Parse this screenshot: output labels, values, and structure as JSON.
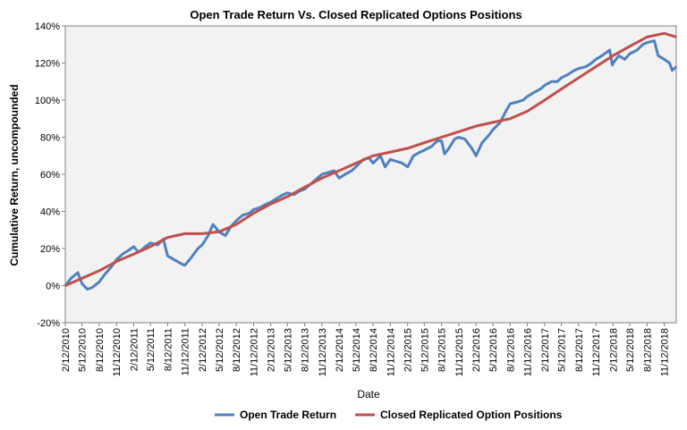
{
  "chart_data": {
    "type": "line",
    "title": "Open Trade Return Vs. Closed Replicated Options  Positions",
    "xlabel": "Date",
    "ylabel": "Cumulative Return, uncompounded",
    "x_tick_labels": [
      "2/12/2010",
      "5/12/2010",
      "8/12/2010",
      "11/12/2010",
      "2/12/2011",
      "5/12/2011",
      "8/12/2011",
      "11/12/2011",
      "2/12/2012",
      "5/12/2012",
      "8/12/2012",
      "11/12/2012",
      "2/12/2013",
      "5/12/2013",
      "8/12/2013",
      "11/12/2013",
      "2/12/2014",
      "5/12/2014",
      "8/12/2014",
      "11/12/2014",
      "2/12/2015",
      "5/12/2015",
      "8/12/2015",
      "11/12/2015",
      "2/12/2016",
      "5/12/2016",
      "8/12/2016",
      "11/12/2016",
      "2/12/2017",
      "5/12/2017",
      "8/12/2017",
      "11/12/2017",
      "2/12/2018",
      "5/12/2018",
      "8/12/2018",
      "11/12/2018"
    ],
    "y_tick_labels": [
      "-20%",
      "0%",
      "20%",
      "40%",
      "60%",
      "80%",
      "100%",
      "120%",
      "140%"
    ],
    "ylim": [
      -20,
      140
    ],
    "grid": false,
    "legend_position": "bottom",
    "series": [
      {
        "name": "Open Trade Return",
        "color": "#4f81bd",
        "points": [
          [
            "2010-02-12",
            0
          ],
          [
            "2010-03-15",
            4
          ],
          [
            "2010-04-20",
            7
          ],
          [
            "2010-05-12",
            1
          ],
          [
            "2010-06-10",
            -2
          ],
          [
            "2010-07-05",
            -1
          ],
          [
            "2010-08-12",
            2
          ],
          [
            "2010-09-10",
            6
          ],
          [
            "2010-10-15",
            10
          ],
          [
            "2010-11-12",
            14
          ],
          [
            "2010-12-15",
            17
          ],
          [
            "2011-01-15",
            19
          ],
          [
            "2011-02-12",
            21
          ],
          [
            "2011-03-10",
            18
          ],
          [
            "2011-04-15",
            21
          ],
          [
            "2011-05-12",
            23
          ],
          [
            "2011-06-20",
            22
          ],
          [
            "2011-07-20",
            25
          ],
          [
            "2011-08-12",
            16
          ],
          [
            "2011-09-15",
            14
          ],
          [
            "2011-10-20",
            12
          ],
          [
            "2011-11-12",
            11
          ],
          [
            "2011-12-15",
            15
          ],
          [
            "2012-01-20",
            20
          ],
          [
            "2012-02-12",
            22
          ],
          [
            "2012-03-15",
            27
          ],
          [
            "2012-04-10",
            33
          ],
          [
            "2012-05-12",
            29
          ],
          [
            "2012-06-15",
            27
          ],
          [
            "2012-07-15",
            32
          ],
          [
            "2012-08-12",
            35
          ],
          [
            "2012-09-15",
            38
          ],
          [
            "2012-10-20",
            39
          ],
          [
            "2012-11-12",
            41
          ],
          [
            "2012-12-15",
            42
          ],
          [
            "2013-01-20",
            44
          ],
          [
            "2013-02-12",
            45
          ],
          [
            "2013-03-15",
            47
          ],
          [
            "2013-04-20",
            49
          ],
          [
            "2013-05-12",
            50
          ],
          [
            "2013-06-15",
            49
          ],
          [
            "2013-07-15",
            51
          ],
          [
            "2013-08-12",
            52
          ],
          [
            "2013-09-15",
            55
          ],
          [
            "2013-10-20",
            58
          ],
          [
            "2013-11-12",
            60
          ],
          [
            "2013-12-15",
            61
          ],
          [
            "2014-01-15",
            62
          ],
          [
            "2014-02-12",
            58
          ],
          [
            "2014-03-15",
            60
          ],
          [
            "2014-04-20",
            62
          ],
          [
            "2014-05-12",
            64
          ],
          [
            "2014-06-20",
            68
          ],
          [
            "2014-07-20",
            69
          ],
          [
            "2014-08-12",
            66
          ],
          [
            "2014-09-20",
            70
          ],
          [
            "2014-10-15",
            64
          ],
          [
            "2014-11-12",
            68
          ],
          [
            "2014-12-15",
            67
          ],
          [
            "2015-01-15",
            66
          ],
          [
            "2015-02-12",
            64
          ],
          [
            "2015-03-15",
            70
          ],
          [
            "2015-04-20",
            72
          ],
          [
            "2015-05-12",
            73
          ],
          [
            "2015-06-20",
            75
          ],
          [
            "2015-07-20",
            78
          ],
          [
            "2015-08-12",
            78
          ],
          [
            "2015-08-28",
            71
          ],
          [
            "2015-09-20",
            74
          ],
          [
            "2015-10-20",
            79
          ],
          [
            "2015-11-12",
            80
          ],
          [
            "2015-12-15",
            79
          ],
          [
            "2016-01-20",
            74
          ],
          [
            "2016-02-12",
            70
          ],
          [
            "2016-03-15",
            77
          ],
          [
            "2016-04-20",
            81
          ],
          [
            "2016-05-12",
            84
          ],
          [
            "2016-06-20",
            88
          ],
          [
            "2016-07-20",
            94
          ],
          [
            "2016-08-12",
            98
          ],
          [
            "2016-09-20",
            99
          ],
          [
            "2016-10-20",
            100
          ],
          [
            "2016-11-12",
            102
          ],
          [
            "2016-12-15",
            104
          ],
          [
            "2017-01-20",
            106
          ],
          [
            "2017-02-12",
            108
          ],
          [
            "2017-03-20",
            110
          ],
          [
            "2017-04-20",
            110
          ],
          [
            "2017-05-12",
            112
          ],
          [
            "2017-06-20",
            114
          ],
          [
            "2017-07-20",
            116
          ],
          [
            "2017-08-12",
            117
          ],
          [
            "2017-09-20",
            118
          ],
          [
            "2017-10-20",
            120
          ],
          [
            "2017-11-12",
            122
          ],
          [
            "2017-12-15",
            124
          ],
          [
            "2018-01-25",
            127
          ],
          [
            "2018-02-08",
            119
          ],
          [
            "2018-02-12",
            120
          ],
          [
            "2018-03-15",
            124
          ],
          [
            "2018-04-15",
            122
          ],
          [
            "2018-05-12",
            125
          ],
          [
            "2018-06-20",
            127
          ],
          [
            "2018-07-20",
            130
          ],
          [
            "2018-08-12",
            131
          ],
          [
            "2018-09-20",
            132
          ],
          [
            "2018-10-10",
            124
          ],
          [
            "2018-11-12",
            122
          ],
          [
            "2018-12-10",
            120
          ],
          [
            "2018-12-24",
            116
          ],
          [
            "2019-01-15",
            118
          ]
        ]
      },
      {
        "name": "Closed Replicated Option Positions",
        "color": "#c0504d",
        "points": [
          [
            "2010-02-12",
            0
          ],
          [
            "2010-05-12",
            4
          ],
          [
            "2010-08-12",
            8
          ],
          [
            "2010-11-12",
            13
          ],
          [
            "2011-02-12",
            17
          ],
          [
            "2011-05-12",
            21
          ],
          [
            "2011-08-12",
            26
          ],
          [
            "2011-11-12",
            28
          ],
          [
            "2012-02-12",
            28
          ],
          [
            "2012-05-12",
            29
          ],
          [
            "2012-08-12",
            33
          ],
          [
            "2012-11-12",
            39
          ],
          [
            "2013-02-12",
            44
          ],
          [
            "2013-05-12",
            48
          ],
          [
            "2013-08-12",
            53
          ],
          [
            "2013-11-12",
            58
          ],
          [
            "2014-02-12",
            62
          ],
          [
            "2014-05-12",
            66
          ],
          [
            "2014-08-12",
            70
          ],
          [
            "2014-11-12",
            72
          ],
          [
            "2015-02-12",
            74
          ],
          [
            "2015-05-12",
            77
          ],
          [
            "2015-08-12",
            80
          ],
          [
            "2015-11-12",
            83
          ],
          [
            "2016-02-12",
            86
          ],
          [
            "2016-05-12",
            88
          ],
          [
            "2016-08-12",
            90
          ],
          [
            "2016-11-12",
            94
          ],
          [
            "2017-02-12",
            100
          ],
          [
            "2017-05-12",
            106
          ],
          [
            "2017-08-12",
            112
          ],
          [
            "2017-11-12",
            118
          ],
          [
            "2018-02-12",
            124
          ],
          [
            "2018-05-12",
            129
          ],
          [
            "2018-08-12",
            134
          ],
          [
            "2018-11-12",
            136
          ],
          [
            "2019-01-15",
            134
          ]
        ]
      }
    ]
  }
}
